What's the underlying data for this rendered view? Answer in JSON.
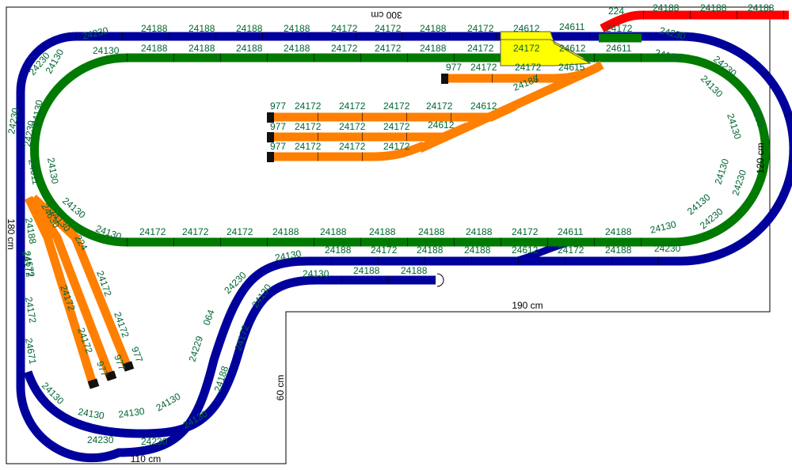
{
  "colors": {
    "outer_loop": "#00009c",
    "inner_loop": "#007a00",
    "sidings": "#ff7f00",
    "turnout": "#ffff00",
    "spur": "#ff0000",
    "label": "#006633",
    "outline": "#000000"
  },
  "dimensions": {
    "top": "300 cm",
    "right": "120 cm",
    "left": "180 cm",
    "step_width": "190 cm",
    "step_height": "60 cm",
    "bottom": "110 cm"
  },
  "outer_loop_labels": {
    "top": [
      "24230",
      "24188",
      "24188",
      "24188",
      "24188",
      "24172",
      "24172",
      "24188",
      "24172",
      "24612",
      "24611"
    ],
    "top_right": "24172",
    "right_curves": [
      "24230",
      "24230",
      "24230",
      "24230",
      "24230"
    ],
    "lower_straight": [
      "24188",
      "24172",
      "24188",
      "24188",
      "24172",
      "24188"
    ],
    "lower_right": [
      "24612",
      "24230"
    ],
    "left": [
      "24230",
      "24230",
      "24230",
      "24611",
      "24188",
      "24672",
      "24172",
      "24671"
    ],
    "bottom_curves": [
      "24130",
      "24130",
      "24130",
      "24230",
      "24230",
      "24130",
      "24130"
    ],
    "diagonal": [
      "24230",
      "064",
      "24229",
      "24130",
      "24172",
      "24188",
      "24130"
    ],
    "inner_spur": [
      "24130",
      "24188",
      "24188",
      "24130"
    ]
  },
  "inner_loop_labels": {
    "top": [
      "24130",
      "24188",
      "24188",
      "24188",
      "24188",
      "24172",
      "24172",
      "24188",
      "24172",
      "24172",
      "24612",
      "24611"
    ],
    "right_curves": [
      "24130",
      "24130",
      "24130",
      "24130",
      "24130"
    ],
    "bottom": [
      "24130",
      "24172",
      "24172",
      "24172",
      "24188",
      "24188",
      "24188",
      "24188",
      "24188",
      "24172",
      "24611",
      "24188",
      "24130"
    ],
    "left_curves": [
      "24130",
      "24130",
      "24130",
      "24130",
      "24130"
    ]
  },
  "sidings_labels": {
    "upper_siding": [
      "977",
      "24172",
      "24172",
      "24615",
      "24188"
    ],
    "track_1": [
      "977",
      "24172",
      "24172",
      "24172",
      "24172",
      "24612"
    ],
    "track_2": [
      "977",
      "24172",
      "24172",
      "24172",
      "24612"
    ],
    "track_3": [
      "977",
      "24172",
      "24172",
      "24172"
    ],
    "left_yard": [
      "24630",
      "224",
      "24172",
      "24172",
      "24172",
      "24172",
      "24172",
      "977",
      "977",
      "977"
    ]
  },
  "spur_labels": [
    "224",
    "24188",
    "24188",
    "24188"
  ]
}
